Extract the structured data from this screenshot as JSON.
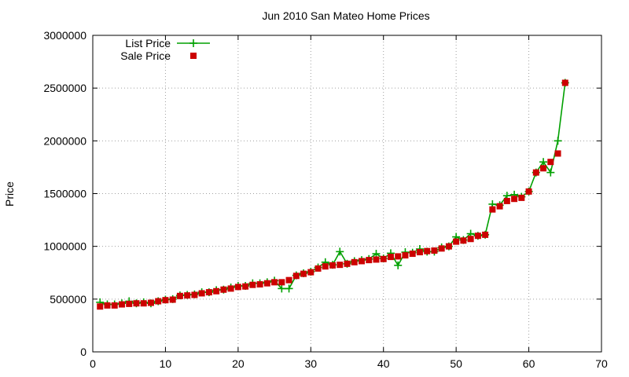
{
  "chart_data": {
    "type": "line",
    "title": "Jun 2010 San Mateo Home Prices",
    "xlabel": "",
    "ylabel": "Price",
    "xlim": [
      0,
      70
    ],
    "ylim": [
      0,
      3000000
    ],
    "x_ticks": [
      0,
      10,
      20,
      30,
      40,
      50,
      60,
      70
    ],
    "y_ticks": [
      0,
      500000,
      1000000,
      1500000,
      2000000,
      2500000,
      3000000
    ],
    "grid": true,
    "legend_position": "top-left",
    "series": [
      {
        "name": "List Price",
        "style": "line+cross",
        "color": "#00a000",
        "x": [
          1,
          2,
          3,
          4,
          5,
          6,
          7,
          8,
          9,
          10,
          11,
          12,
          13,
          14,
          15,
          16,
          17,
          18,
          19,
          20,
          21,
          22,
          23,
          24,
          25,
          26,
          27,
          28,
          29,
          30,
          31,
          32,
          33,
          34,
          35,
          36,
          37,
          38,
          39,
          40,
          41,
          42,
          43,
          44,
          45,
          46,
          47,
          48,
          49,
          50,
          51,
          52,
          53,
          54,
          55,
          56,
          57,
          58,
          59,
          60,
          61,
          62,
          63,
          64,
          65
        ],
        "values": [
          470000,
          450000,
          450000,
          460000,
          480000,
          460000,
          470000,
          460000,
          480000,
          495000,
          500000,
          535000,
          540000,
          545000,
          565000,
          565000,
          585000,
          590000,
          610000,
          625000,
          625000,
          650000,
          650000,
          660000,
          675000,
          600000,
          600000,
          725000,
          745000,
          760000,
          800000,
          850000,
          825000,
          950000,
          835000,
          860000,
          870000,
          880000,
          930000,
          885000,
          935000,
          820000,
          945000,
          940000,
          975000,
          950000,
          950000,
          990000,
          1000000,
          1090000,
          1060000,
          1120000,
          1100000,
          1110000,
          1400000,
          1390000,
          1480000,
          1490000,
          1470000,
          1520000,
          1700000,
          1800000,
          1700000,
          2000000,
          2550000
        ]
      },
      {
        "name": "Sale Price",
        "style": "square",
        "color": "#cc0000",
        "x": [
          1,
          2,
          3,
          4,
          5,
          6,
          7,
          8,
          9,
          10,
          11,
          12,
          13,
          14,
          15,
          16,
          17,
          18,
          19,
          20,
          21,
          22,
          23,
          24,
          25,
          26,
          27,
          28,
          29,
          30,
          31,
          32,
          33,
          34,
          35,
          36,
          37,
          38,
          39,
          40,
          41,
          42,
          43,
          44,
          45,
          46,
          47,
          48,
          49,
          50,
          51,
          52,
          53,
          54,
          55,
          56,
          57,
          58,
          59,
          60,
          61,
          62,
          63,
          64,
          65
        ],
        "values": [
          430000,
          440000,
          440000,
          450000,
          455000,
          460000,
          460000,
          465000,
          480000,
          490000,
          495000,
          530000,
          535000,
          540000,
          555000,
          565000,
          575000,
          590000,
          600000,
          615000,
          620000,
          635000,
          640000,
          650000,
          660000,
          660000,
          680000,
          720000,
          740000,
          755000,
          790000,
          810000,
          820000,
          825000,
          835000,
          850000,
          860000,
          870000,
          875000,
          880000,
          900000,
          905000,
          915000,
          930000,
          945000,
          955000,
          960000,
          980000,
          1000000,
          1045000,
          1055000,
          1070000,
          1100000,
          1110000,
          1350000,
          1380000,
          1430000,
          1450000,
          1460000,
          1520000,
          1700000,
          1740000,
          1800000,
          1880000,
          2550000
        ]
      }
    ]
  }
}
